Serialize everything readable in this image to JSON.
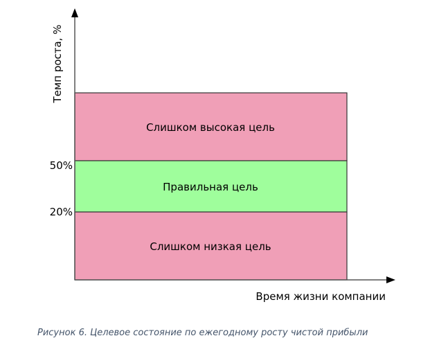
{
  "diagram": {
    "y_axis_label": "Темп роста, %",
    "x_axis_label": "Время жизни компании",
    "zones": [
      {
        "label": "Слишком высокая цель",
        "color": "#f09fb7"
      },
      {
        "label": "Правильная цель",
        "color": "#9ffe9c"
      },
      {
        "label": "Слишком низкая цель",
        "color": "#f09fb7"
      }
    ],
    "thresholds": [
      "50%",
      "20%"
    ],
    "caption": "Рисунок 6. Целевое состояние по ежегодному росту чистой прибыли"
  }
}
